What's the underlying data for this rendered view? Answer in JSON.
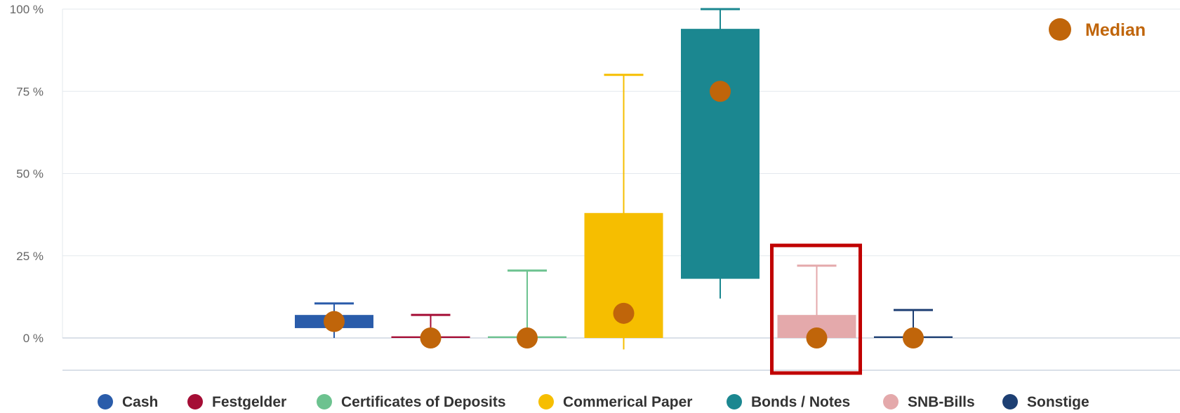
{
  "chart_data": {
    "type": "boxplot",
    "title": "",
    "xlabel": "",
    "ylabel": "",
    "ylim": [
      0,
      100
    ],
    "y_ticks": [
      "0 %",
      "25 %",
      "50 %",
      "75 %",
      "100 %"
    ],
    "y_tick_values": [
      0,
      25,
      50,
      75,
      100
    ],
    "grid": true,
    "legend_placement": "bottom",
    "median_legend": {
      "label": "Median",
      "color": "#C0650A",
      "placement": "top-right"
    },
    "highlight": {
      "series": "SNB-Bills",
      "color": "#C00000"
    },
    "series": [
      {
        "name": "Cash",
        "color": "#2A5CAA",
        "min": 0,
        "q1": 3,
        "median": 5,
        "q3": 7,
        "max": 10.5
      },
      {
        "name": "Festgelder",
        "color": "#A50D35",
        "min": 0,
        "q1": 0,
        "median": 0,
        "q3": 0.5,
        "max": 7
      },
      {
        "name": "Certificates of Deposits",
        "color": "#6CC28F",
        "min": 0,
        "q1": 0,
        "median": 0,
        "q3": 0.5,
        "max": 20.5
      },
      {
        "name": "Commerical Paper",
        "color": "#F6BE00",
        "min": -3.5,
        "q1": 0,
        "median": 7.5,
        "q3": 38,
        "max": 80
      },
      {
        "name": "Bonds / Notes",
        "color": "#1B8790",
        "min": 12,
        "q1": 18,
        "median": 75,
        "q3": 94,
        "max": 100
      },
      {
        "name": "SNB-Bills",
        "color": "#E4A9AB",
        "min": 0,
        "q1": 0,
        "median": 0,
        "q3": 7,
        "max": 22
      },
      {
        "name": "Sonstige",
        "color": "#1D3F73",
        "min": 0,
        "q1": 0,
        "median": 0,
        "q3": 0.5,
        "max": 8.5
      }
    ]
  }
}
